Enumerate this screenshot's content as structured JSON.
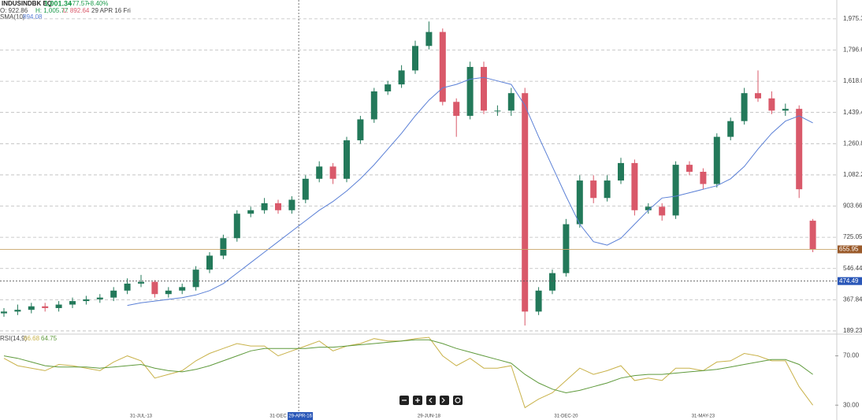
{
  "chart_data": [
    {
      "type": "candlestick",
      "title": "INDUSINDBK EQ",
      "last": "1,001.34",
      "change": "+77.57",
      "change_pct": "+8.40%",
      "ohlc_labels": [
        "O: 922.86",
        "H: 1,005.77",
        "L: 892.64"
      ],
      "date_label": "29 APR 16 Fri",
      "categories": [
        null,
        null,
        null,
        null,
        null,
        null,
        null,
        null,
        null,
        null,
        "31-JUL-13",
        null,
        null,
        null,
        null,
        null,
        null,
        null,
        null,
        null,
        "31-DEC",
        null,
        null,
        null,
        null,
        null,
        null,
        null,
        null,
        null,
        null,
        "29-JUN-18",
        null,
        null,
        null,
        null,
        null,
        null,
        null,
        null,
        null,
        "31-DEC-20",
        null,
        null,
        null,
        null,
        null,
        null,
        null,
        null,
        null,
        "31-MAY-23",
        null,
        null,
        null,
        null,
        null,
        null,
        null,
        null
      ],
      "open": [
        290,
        300,
        310,
        330,
        320,
        340,
        360,
        370,
        380,
        420,
        460,
        470,
        400,
        420,
        440,
        540,
        620,
        720,
        860,
        880,
        920,
        880,
        940,
        1060,
        1130,
        1060,
        1280,
        1400,
        1560,
        1600,
        1680,
        1820,
        1900,
        1500,
        1420,
        1700,
        1450,
        1450,
        1550,
        300,
        420,
        520,
        800,
        1050,
        950,
        1050,
        1150,
        880,
        900,
        850,
        1140,
        1100,
        1030,
        1300,
        1390,
        1550,
        1520,
        1450,
        1460,
        820
      ],
      "high": [
        320,
        340,
        350,
        350,
        360,
        380,
        390,
        400,
        440,
        490,
        510,
        480,
        440,
        460,
        560,
        640,
        740,
        880,
        900,
        950,
        940,
        960,
        1080,
        1160,
        1150,
        1300,
        1420,
        1580,
        1620,
        1710,
        1850,
        1960,
        1920,
        1520,
        1730,
        1730,
        1480,
        1580,
        1580,
        440,
        540,
        830,
        1080,
        1080,
        1080,
        1180,
        1170,
        920,
        920,
        1160,
        1160,
        1120,
        1320,
        1410,
        1580,
        1680,
        1560,
        1490,
        1480,
        830
      ],
      "low": [
        270,
        280,
        290,
        300,
        300,
        320,
        340,
        350,
        360,
        400,
        440,
        380,
        380,
        400,
        420,
        520,
        600,
        700,
        840,
        860,
        860,
        860,
        920,
        1040,
        1030,
        1040,
        1260,
        1380,
        1540,
        1580,
        1660,
        1800,
        1480,
        1300,
        1400,
        1430,
        1420,
        1420,
        220,
        280,
        400,
        500,
        780,
        920,
        930,
        1030,
        850,
        860,
        820,
        830,
        1080,
        1000,
        1010,
        1280,
        1370,
        1500,
        1430,
        1420,
        950,
        640
      ],
      "close": [
        300,
        310,
        330,
        320,
        340,
        360,
        370,
        380,
        420,
        460,
        470,
        400,
        420,
        440,
        540,
        620,
        720,
        860,
        880,
        920,
        880,
        940,
        1060,
        1130,
        1060,
        1280,
        1400,
        1560,
        1600,
        1680,
        1820,
        1900,
        1500,
        1420,
        1700,
        1450,
        1450,
        1550,
        300,
        420,
        520,
        800,
        1050,
        950,
        1050,
        1150,
        880,
        900,
        850,
        1140,
        1100,
        1030,
        1300,
        1390,
        1550,
        1520,
        1450,
        1460,
        1000,
        656
      ],
      "up_color": "#23795a",
      "down_color": "#d9596a",
      "sma": {
        "name": "SMA(10)",
        "value_label": "894.08",
        "color": "#5b80d6",
        "values": [
          null,
          null,
          null,
          null,
          null,
          null,
          null,
          null,
          null,
          335,
          350,
          360,
          370,
          380,
          395,
          420,
          460,
          520,
          580,
          640,
          700,
          760,
          820,
          880,
          930,
          990,
          1060,
          1140,
          1230,
          1320,
          1420,
          1510,
          1580,
          1600,
          1630,
          1640,
          1620,
          1600,
          1480,
          1300,
          1130,
          960,
          800,
          700,
          680,
          720,
          800,
          880,
          950,
          960,
          980,
          1000,
          1020,
          1060,
          1130,
          1230,
          1320,
          1390,
          1420,
          1380
        ]
      },
      "ylim": [
        171,
        2083
      ],
      "yticks": [
        {
          "value": 189.23,
          "label": "189.23"
        },
        367.84,
        546.44,
        725.05,
        903.66,
        {
          "value": 1082.26,
          "label": "1,082.26"
        },
        {
          "value": 1260.87,
          "label": "1,260.87"
        },
        {
          "value": 1439.48,
          "label": "1,439.48"
        },
        {
          "value": 1618.08,
          "label": "1,618.08"
        },
        {
          "value": 1796.69,
          "label": "1,796.69"
        },
        {
          "value": 1975.3,
          "label": "1,975.30"
        }
      ],
      "grid": true,
      "last_price": 655.95,
      "crosshair": {
        "y": 474.49,
        "x_label": "29-APR-16"
      }
    },
    {
      "type": "line",
      "title": "RSI(14,9)",
      "series": [
        {
          "color": "#c9b24a",
          "value_label": "66.68",
          "values": [
            68,
            62,
            60,
            58,
            63,
            62,
            60,
            58,
            65,
            70,
            66,
            52,
            55,
            58,
            66,
            72,
            76,
            80,
            78,
            78,
            70,
            74,
            78,
            82,
            74,
            78,
            80,
            84,
            82,
            82,
            84,
            85,
            70,
            62,
            68,
            60,
            60,
            62,
            28,
            35,
            40,
            50,
            60,
            55,
            58,
            62,
            50,
            52,
            50,
            60,
            60,
            58,
            65,
            66,
            72,
            70,
            66,
            66,
            45,
            30
          ]
        },
        {
          "color": "#5f9a3c",
          "value_label": "64.75",
          "values": [
            70,
            68,
            65,
            62,
            61,
            61,
            61,
            60,
            61,
            62,
            63,
            60,
            58,
            57,
            59,
            62,
            66,
            70,
            74,
            76,
            76,
            76,
            76,
            77,
            77,
            78,
            79,
            80,
            81,
            82,
            83,
            83,
            80,
            76,
            73,
            70,
            67,
            64,
            55,
            48,
            43,
            40,
            42,
            45,
            48,
            52,
            54,
            55,
            55,
            56,
            57,
            58,
            59,
            61,
            63,
            65,
            67,
            67,
            63,
            55
          ]
        }
      ],
      "ylim": [
        25,
        87
      ],
      "yticks": [
        {
          "value": 30,
          "label": "30.00"
        },
        {
          "value": 70,
          "label": "70.00"
        }
      ]
    }
  ]
}
